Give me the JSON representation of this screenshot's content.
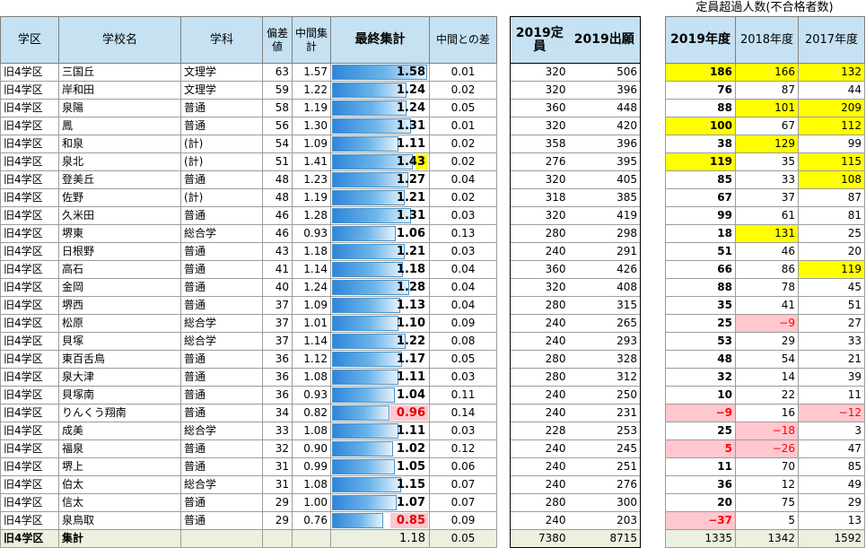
{
  "headers": {
    "district": "学区",
    "school": "学校名",
    "dept": "学科",
    "deviation": "偏差値",
    "mid": "中間集計",
    "final": "最終集計",
    "diff": "中間との差",
    "capacity": "2019定員",
    "applicants": "2019出願",
    "over_title": "定員超過人数(不合格者数)",
    "y2019": "2019年度",
    "y2018": "2018年度",
    "y2017": "2017年度"
  },
  "rows": [
    {
      "district": "旧4学区",
      "school": "三国丘",
      "dept": "文理学",
      "dev": "63",
      "mid": "1.57",
      "final": "1.58",
      "diff": "0.01",
      "cap": "320",
      "app": "506",
      "o19": "186",
      "o18": "166",
      "o17": "132"
    },
    {
      "district": "旧4学区",
      "school": "岸和田",
      "dept": "文理学",
      "dev": "59",
      "mid": "1.22",
      "final": "1.24",
      "diff": "0.02",
      "cap": "320",
      "app": "396",
      "o19": "76",
      "o18": "87",
      "o17": "44"
    },
    {
      "district": "旧4学区",
      "school": "泉陽",
      "dept": "普通",
      "dev": "58",
      "mid": "1.19",
      "final": "1.24",
      "diff": "0.05",
      "cap": "360",
      "app": "448",
      "o19": "88",
      "o18": "101",
      "o17": "209"
    },
    {
      "district": "旧4学区",
      "school": "鳳",
      "dept": "普通",
      "dev": "56",
      "mid": "1.30",
      "final": "1.31",
      "diff": "0.01",
      "cap": "320",
      "app": "420",
      "o19": "100",
      "o18": "67",
      "o17": "112"
    },
    {
      "district": "旧4学区",
      "school": "和泉",
      "dept": "(計)",
      "dev": "54",
      "mid": "1.09",
      "final": "1.11",
      "diff": "0.02",
      "cap": "358",
      "app": "396",
      "o19": "38",
      "o18": "129",
      "o17": "99"
    },
    {
      "district": "旧4学区",
      "school": "泉北",
      "dept": "(計)",
      "dev": "51",
      "mid": "1.41",
      "final": "1.43",
      "diff": "0.02",
      "cap": "276",
      "app": "395",
      "o19": "119",
      "o18": "35",
      "o17": "115"
    },
    {
      "district": "旧4学区",
      "school": "登美丘",
      "dept": "普通",
      "dev": "48",
      "mid": "1.23",
      "final": "1.27",
      "diff": "0.04",
      "cap": "320",
      "app": "405",
      "o19": "85",
      "o18": "33",
      "o17": "108"
    },
    {
      "district": "旧4学区",
      "school": "佐野",
      "dept": "(計)",
      "dev": "48",
      "mid": "1.19",
      "final": "1.21",
      "diff": "0.02",
      "cap": "318",
      "app": "385",
      "o19": "67",
      "o18": "37",
      "o17": "87"
    },
    {
      "district": "旧4学区",
      "school": "久米田",
      "dept": "普通",
      "dev": "46",
      "mid": "1.28",
      "final": "1.31",
      "diff": "0.03",
      "cap": "320",
      "app": "419",
      "o19": "99",
      "o18": "61",
      "o17": "81"
    },
    {
      "district": "旧4学区",
      "school": "堺東",
      "dept": "総合学",
      "dev": "46",
      "mid": "0.93",
      "final": "1.06",
      "diff": "0.13",
      "cap": "280",
      "app": "298",
      "o19": "18",
      "o18": "131",
      "o17": "25"
    },
    {
      "district": "旧4学区",
      "school": "日根野",
      "dept": "普通",
      "dev": "43",
      "mid": "1.18",
      "final": "1.21",
      "diff": "0.03",
      "cap": "240",
      "app": "291",
      "o19": "51",
      "o18": "46",
      "o17": "20"
    },
    {
      "district": "旧4学区",
      "school": "高石",
      "dept": "普通",
      "dev": "41",
      "mid": "1.14",
      "final": "1.18",
      "diff": "0.04",
      "cap": "360",
      "app": "426",
      "o19": "66",
      "o18": "86",
      "o17": "119"
    },
    {
      "district": "旧4学区",
      "school": "金岡",
      "dept": "普通",
      "dev": "40",
      "mid": "1.24",
      "final": "1.28",
      "diff": "0.04",
      "cap": "320",
      "app": "408",
      "o19": "88",
      "o18": "78",
      "o17": "45"
    },
    {
      "district": "旧4学区",
      "school": "堺西",
      "dept": "普通",
      "dev": "37",
      "mid": "1.09",
      "final": "1.13",
      "diff": "0.04",
      "cap": "280",
      "app": "315",
      "o19": "35",
      "o18": "41",
      "o17": "51"
    },
    {
      "district": "旧4学区",
      "school": "松原",
      "dept": "総合学",
      "dev": "37",
      "mid": "1.01",
      "final": "1.10",
      "diff": "0.09",
      "cap": "240",
      "app": "265",
      "o19": "25",
      "o18": "−9",
      "o17": "27"
    },
    {
      "district": "旧4学区",
      "school": "貝塚",
      "dept": "総合学",
      "dev": "37",
      "mid": "1.14",
      "final": "1.22",
      "diff": "0.08",
      "cap": "240",
      "app": "293",
      "o19": "53",
      "o18": "29",
      "o17": "33"
    },
    {
      "district": "旧4学区",
      "school": "東百舌鳥",
      "dept": "普通",
      "dev": "36",
      "mid": "1.12",
      "final": "1.17",
      "diff": "0.05",
      "cap": "280",
      "app": "328",
      "o19": "48",
      "o18": "54",
      "o17": "21"
    },
    {
      "district": "旧4学区",
      "school": "泉大津",
      "dept": "普通",
      "dev": "36",
      "mid": "1.08",
      "final": "1.11",
      "diff": "0.03",
      "cap": "280",
      "app": "312",
      "o19": "32",
      "o18": "14",
      "o17": "39"
    },
    {
      "district": "旧4学区",
      "school": "貝塚南",
      "dept": "普通",
      "dev": "36",
      "mid": "0.93",
      "final": "1.04",
      "diff": "0.11",
      "cap": "240",
      "app": "250",
      "o19": "10",
      "o18": "22",
      "o17": "11"
    },
    {
      "district": "旧4学区",
      "school": "りんくう翔南",
      "dept": "普通",
      "dev": "34",
      "mid": "0.82",
      "final": "0.96",
      "diff": "0.14",
      "cap": "240",
      "app": "231",
      "o19": "−9",
      "o18": "16",
      "o17": "−12"
    },
    {
      "district": "旧4学区",
      "school": "成美",
      "dept": "総合学",
      "dev": "33",
      "mid": "1.08",
      "final": "1.11",
      "diff": "0.03",
      "cap": "228",
      "app": "253",
      "o19": "25",
      "o18": "−18",
      "o17": "3"
    },
    {
      "district": "旧4学区",
      "school": "福泉",
      "dept": "普通",
      "dev": "32",
      "mid": "0.90",
      "final": "1.02",
      "diff": "0.12",
      "cap": "240",
      "app": "245",
      "o19": "5",
      "o18": "−26",
      "o17": "47"
    },
    {
      "district": "旧4学区",
      "school": "堺上",
      "dept": "普通",
      "dev": "31",
      "mid": "0.99",
      "final": "1.05",
      "diff": "0.06",
      "cap": "240",
      "app": "251",
      "o19": "11",
      "o18": "70",
      "o17": "85"
    },
    {
      "district": "旧4学区",
      "school": "伯太",
      "dept": "総合学",
      "dev": "31",
      "mid": "1.08",
      "final": "1.15",
      "diff": "0.07",
      "cap": "240",
      "app": "276",
      "o19": "36",
      "o18": "12",
      "o17": "49"
    },
    {
      "district": "旧4学区",
      "school": "信太",
      "dept": "普通",
      "dev": "29",
      "mid": "1.00",
      "final": "1.07",
      "diff": "0.07",
      "cap": "280",
      "app": "300",
      "o19": "20",
      "o18": "75",
      "o17": "29"
    },
    {
      "district": "旧4学区",
      "school": "泉鳥取",
      "dept": "普通",
      "dev": "29",
      "mid": "0.76",
      "final": "0.85",
      "diff": "0.09",
      "cap": "240",
      "app": "203",
      "o19": "−37",
      "o18": "5",
      "o17": "13"
    }
  ],
  "total": {
    "district": "旧4学区",
    "school": "集計",
    "final": "1.18",
    "diff": "0.05",
    "cap": "7380",
    "app": "8715",
    "o19": "1335",
    "o18": "1342",
    "o17": "1592"
  },
  "highlights": {
    "yellow_o19": [
      0,
      3,
      5
    ],
    "yellow_o18": [
      0,
      2,
      4,
      9
    ],
    "yellow_o17": [
      0,
      2,
      3,
      5,
      6,
      11
    ],
    "yellow_final": [
      5
    ],
    "pink_o19": [
      19,
      21,
      25
    ],
    "pink_o18": [
      14,
      20,
      21
    ],
    "pink_o17": [
      19
    ],
    "pink_final": [
      19,
      25
    ]
  },
  "colors": {
    "header_bg": "#c5e1f2",
    "total_bg": "#ecf0df",
    "yellow": "#ffff00",
    "pink": "#ffc7ce",
    "negative": "#ff0000"
  }
}
